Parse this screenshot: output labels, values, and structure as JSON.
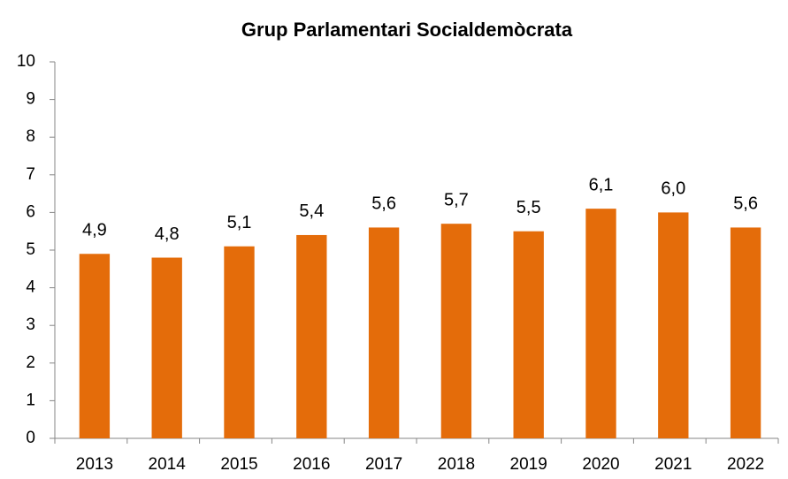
{
  "chart_data": {
    "type": "bar",
    "title": "Grup Parlamentari Socialdemòcrata",
    "categories": [
      "2013",
      "2014",
      "2015",
      "2016",
      "2017",
      "2018",
      "2019",
      "2020",
      "2021",
      "2022"
    ],
    "values": [
      4.9,
      4.8,
      5.1,
      5.4,
      5.6,
      5.7,
      5.5,
      6.1,
      6.0,
      5.6
    ],
    "value_labels": [
      "4,9",
      "4,8",
      "5,1",
      "5,4",
      "5,6",
      "5,7",
      "5,5",
      "6,1",
      "6,0",
      "5,6"
    ],
    "color": "#e46c0a",
    "ylim": [
      0,
      10
    ],
    "yticks": [
      0,
      1,
      2,
      3,
      4,
      5,
      6,
      7,
      8,
      9,
      10
    ],
    "grid": false
  }
}
